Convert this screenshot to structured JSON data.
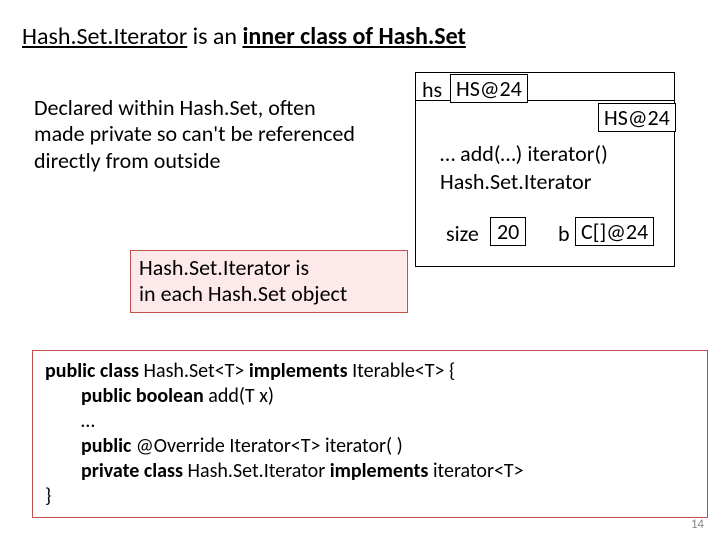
{
  "title": {
    "part1": "Hash.Set.Iterator",
    "part2": " is an  ",
    "part3": "inner class",
    "part4": " of Hash.Set"
  },
  "leftPara": "Declared within Hash.Set, often made private so can't be referenced directly from outside",
  "pinkBox": {
    "line1": "Hash.Set.Iterator is",
    "line2": "in each Hash.Set object"
  },
  "object": {
    "hsLabel": "hs",
    "hsVal": "HS@24",
    "hs24": "HS@24",
    "methodsLine1": "… add(…)    iterator()",
    "methodsLine2": "Hash.Set.Iterator",
    "sizeLabel": "size",
    "sizeVal": "20",
    "bLabel": "b",
    "bVal": "C[]@24"
  },
  "code": {
    "l1a": "public class ",
    "l1b": "Hash.Set<T>  ",
    "l1c": "implements ",
    "l1d": "Iterable<T> {",
    "l2a": "public boolean ",
    "l2b": "add(T x)",
    "l3": " …",
    "l4a": "public ",
    "l4b": "@Override Iterator<T> iterator( )",
    "l5a": "private class ",
    "l5b": "Hash.Set.Iterator ",
    "l5c": "implements ",
    "l5d": "iterator<T>",
    "l6": "}"
  },
  "pageNum": "14"
}
